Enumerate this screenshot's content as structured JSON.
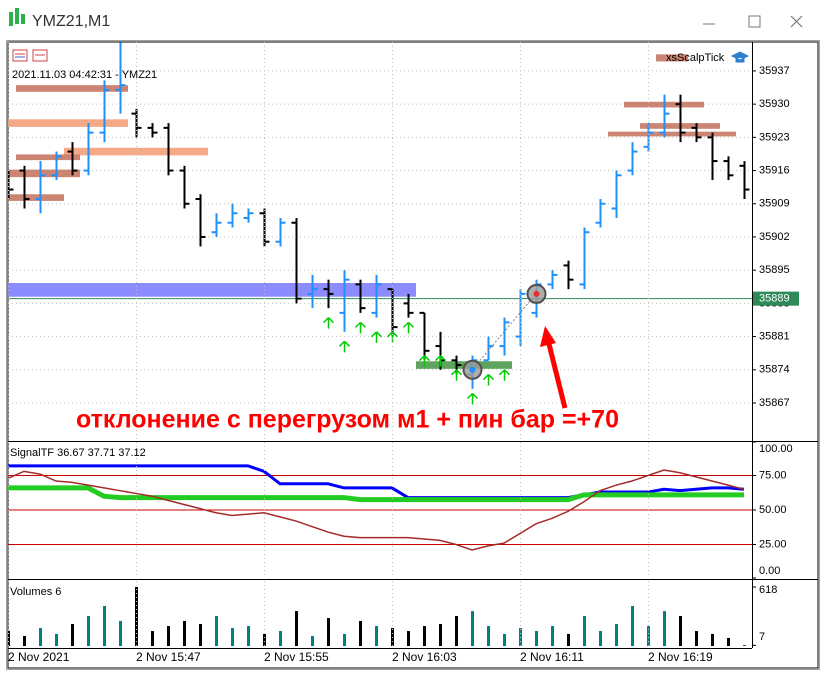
{
  "window": {
    "title": "YMZ21,M1"
  },
  "chart_data": [
    {
      "type": "ohlc",
      "title": "2021.11.03 04:42:31 - YMZ21",
      "indicator_label": "xsScalpTick",
      "categories": [
        "2 Nov 2021",
        null,
        null,
        null,
        null,
        null,
        null,
        null,
        "2 Nov 15:47",
        null,
        null,
        null,
        null,
        null,
        null,
        null,
        "2 Nov 15:55",
        null,
        null,
        null,
        null,
        null,
        null,
        null,
        "2 Nov 16:03",
        null,
        null,
        null,
        null,
        null,
        null,
        null,
        "2 Nov 16:11",
        null,
        null,
        null,
        null,
        null,
        null,
        null,
        "2 Nov 16:19",
        null,
        null,
        null,
        null,
        null,
        null
      ],
      "open": [
        35914,
        35916,
        35910,
        35915,
        35920,
        35916,
        35924,
        35933,
        35928,
        35925,
        35925,
        35916,
        35910,
        35903,
        35905,
        35906,
        35907,
        35901,
        35905,
        35890,
        35891,
        35886,
        35892,
        35886,
        35891,
        35888,
        35886,
        35879,
        35876,
        35873,
        35876,
        35879,
        35881,
        35886,
        35892,
        35896,
        35892,
        35905,
        35908,
        35916,
        35921,
        35924,
        35930,
        35925,
        35923,
        35918,
        35917
      ],
      "high": [
        35916,
        35917,
        35918,
        35920,
        35922,
        35926,
        35935,
        35943,
        35929,
        35926,
        35926,
        35917,
        35911,
        35907,
        35909,
        35908,
        35908,
        35906,
        35906,
        35894,
        35893,
        35895,
        35893,
        35894,
        35891,
        35890,
        35886,
        35882,
        35877,
        35877,
        35881,
        35885,
        35891,
        35893,
        35895,
        35897,
        35904,
        35910,
        35916,
        35922,
        35926,
        35932,
        35932,
        35926,
        35924,
        35919,
        35918
      ],
      "low": [
        35910,
        35908,
        35907,
        35914,
        35915,
        35915,
        35922,
        35928,
        35923,
        35923,
        35915,
        35908,
        35900,
        35902,
        35904,
        35905,
        35900,
        35900,
        35888,
        35887,
        35887,
        35882,
        35886,
        35885,
        35881,
        35885,
        35876,
        35874,
        35873,
        35870,
        35876,
        35877,
        35879,
        35885,
        35891,
        35891,
        35891,
        35904,
        35906,
        35915,
        35920,
        35923,
        35922,
        35922,
        35914,
        35914,
        35910
      ],
      "close": [
        35912,
        35910,
        35915,
        35919,
        35916,
        35924,
        35933,
        35934,
        35925,
        35924,
        35916,
        35909,
        35902,
        35905,
        35907,
        35907,
        35901,
        35905,
        35889,
        35891,
        35890,
        35893,
        35887,
        35892,
        35883,
        35886,
        35878,
        35876,
        35875,
        35876,
        35879,
        35884,
        35890,
        35892,
        35894,
        35893,
        35903,
        35909,
        35915,
        35920,
        35924,
        35928,
        35924,
        35923,
        35918,
        35915,
        35912
      ],
      "up_color": "#1e90ff",
      "down_color": "#000000",
      "ylim": [
        35859.2,
        35943.1
      ],
      "yticks": [
        35867,
        35874,
        35881,
        35888,
        35895,
        35902,
        35909,
        35916,
        35923,
        35930,
        35937
      ],
      "grid": true,
      "current_price": 35889,
      "current_price_color": "#2e8b57",
      "zones": [
        {
          "from": 0,
          "to": 7,
          "low": 35925.2,
          "high": 35926.8,
          "color": "#f4a07a"
        },
        {
          "from": 4,
          "to": 12,
          "low": 35919.2,
          "high": 35920.8,
          "color": "#f4a07a"
        },
        {
          "from": 1,
          "to": 7,
          "low": 35932.6,
          "high": 35934,
          "color": "#c87864"
        },
        {
          "from": 1,
          "to": 4,
          "low": 35918.2,
          "high": 35919.4,
          "color": "#c87864"
        },
        {
          "from": 0,
          "to": 4,
          "low": 35914.6,
          "high": 35916.2,
          "color": "#c87864"
        },
        {
          "from": 0,
          "to": 3,
          "low": 35909.6,
          "high": 35911,
          "color": "#c87864"
        },
        {
          "from": 0,
          "to": 25,
          "low": 35889.4,
          "high": 35892.3,
          "color": "#8080ff"
        },
        {
          "from": 26,
          "to": 31,
          "low": 35874.2,
          "high": 35875.8,
          "color": "#4c9a4c"
        },
        {
          "from": 39,
          "to": 43,
          "low": 35929.3,
          "high": 35930.5,
          "color": "#c87864"
        },
        {
          "from": 40,
          "to": 44,
          "low": 35924.8,
          "high": 35926,
          "color": "#c87864"
        },
        {
          "from": 38,
          "to": 45,
          "low": 35923.2,
          "high": 35924.2,
          "color": "#c87864"
        },
        {
          "from": 41,
          "to": 42,
          "low": 35939,
          "high": 35940.5,
          "color": "#c87864"
        }
      ],
      "arrows": {
        "color": "#00cc00",
        "bars": [
          20,
          21,
          22,
          23,
          24,
          25,
          26,
          27,
          28,
          29,
          30,
          31
        ],
        "prices": [
          35885,
          35880,
          35884,
          35882,
          35882,
          35884,
          35877,
          35877,
          35874,
          35869,
          35873,
          35874
        ]
      },
      "signal_points": {
        "bars": [
          29,
          33
        ],
        "prices": [
          35874,
          35890
        ]
      },
      "annotation": "отклонение с перегрузом м1 + пин бар =+70"
    },
    {
      "type": "line",
      "title": "SignalTF 36.67 37.71 37.12",
      "series": [
        {
          "color": "#0000ff",
          "width": 3,
          "values": [
            82,
            82,
            82,
            82,
            82,
            82,
            82,
            82,
            82,
            82,
            82,
            82,
            82,
            82,
            82,
            82,
            78,
            69,
            69,
            69,
            69,
            66,
            66,
            66,
            66,
            59,
            59,
            59,
            59,
            59,
            59,
            59,
            59,
            59,
            59,
            59,
            61,
            63,
            63,
            63,
            63,
            65,
            64,
            65,
            66,
            66,
            65
          ]
        },
        {
          "color": "#22cc22",
          "width": 5,
          "values": [
            66,
            66,
            66,
            66,
            66,
            66,
            60,
            59,
            59,
            59,
            59,
            59,
            59,
            59,
            59,
            59,
            59,
            59,
            59,
            59,
            59,
            59,
            57.5,
            57.5,
            57.5,
            57.5,
            57.5,
            57.5,
            57.5,
            57.5,
            57.5,
            57.5,
            57.5,
            57.5,
            57.5,
            57.5,
            61,
            61,
            61,
            61,
            61,
            61,
            61,
            61,
            61,
            61,
            61
          ]
        },
        {
          "color": "#a52a2a",
          "width": 1.5,
          "values": [
            73,
            78,
            76,
            71,
            70,
            68,
            66,
            64,
            62,
            60,
            57,
            54,
            51,
            48,
            46,
            47,
            48,
            45,
            42,
            38,
            34,
            31,
            30,
            30,
            30,
            30,
            29,
            28,
            25,
            21,
            24,
            26,
            33,
            40,
            44,
            49,
            56,
            64,
            68,
            71,
            75,
            79,
            77,
            74,
            71,
            68,
            65
          ]
        }
      ],
      "ylim": [
        0,
        100
      ],
      "yticks": [
        {
          "value": 0,
          "label": "0.00"
        },
        {
          "value": 25,
          "label": "25.00"
        },
        {
          "value": 50,
          "label": "50.00"
        },
        {
          "value": 75,
          "label": "75.00"
        },
        {
          "value": 100,
          "label": "100.00"
        }
      ],
      "levels": [
        25,
        50,
        75
      ],
      "level_color": "#cc0000"
    },
    {
      "type": "bar",
      "title": "Volumes 6",
      "values": [
        157,
        105,
        188,
        126,
        230,
        314,
        419,
        262,
        618,
        157,
        209,
        262,
        230,
        314,
        188,
        209,
        126,
        157,
        366,
        105,
        293,
        126,
        262,
        209,
        188,
        157,
        209,
        230,
        314,
        366,
        209,
        126,
        188,
        157,
        209,
        126,
        314,
        157,
        230,
        419,
        209,
        366,
        314,
        157,
        126,
        84,
        7
      ],
      "up_color": "#008080",
      "down_color": "#000000",
      "ylim": [
        0,
        618
      ],
      "yticks": [
        7,
        618
      ]
    }
  ]
}
